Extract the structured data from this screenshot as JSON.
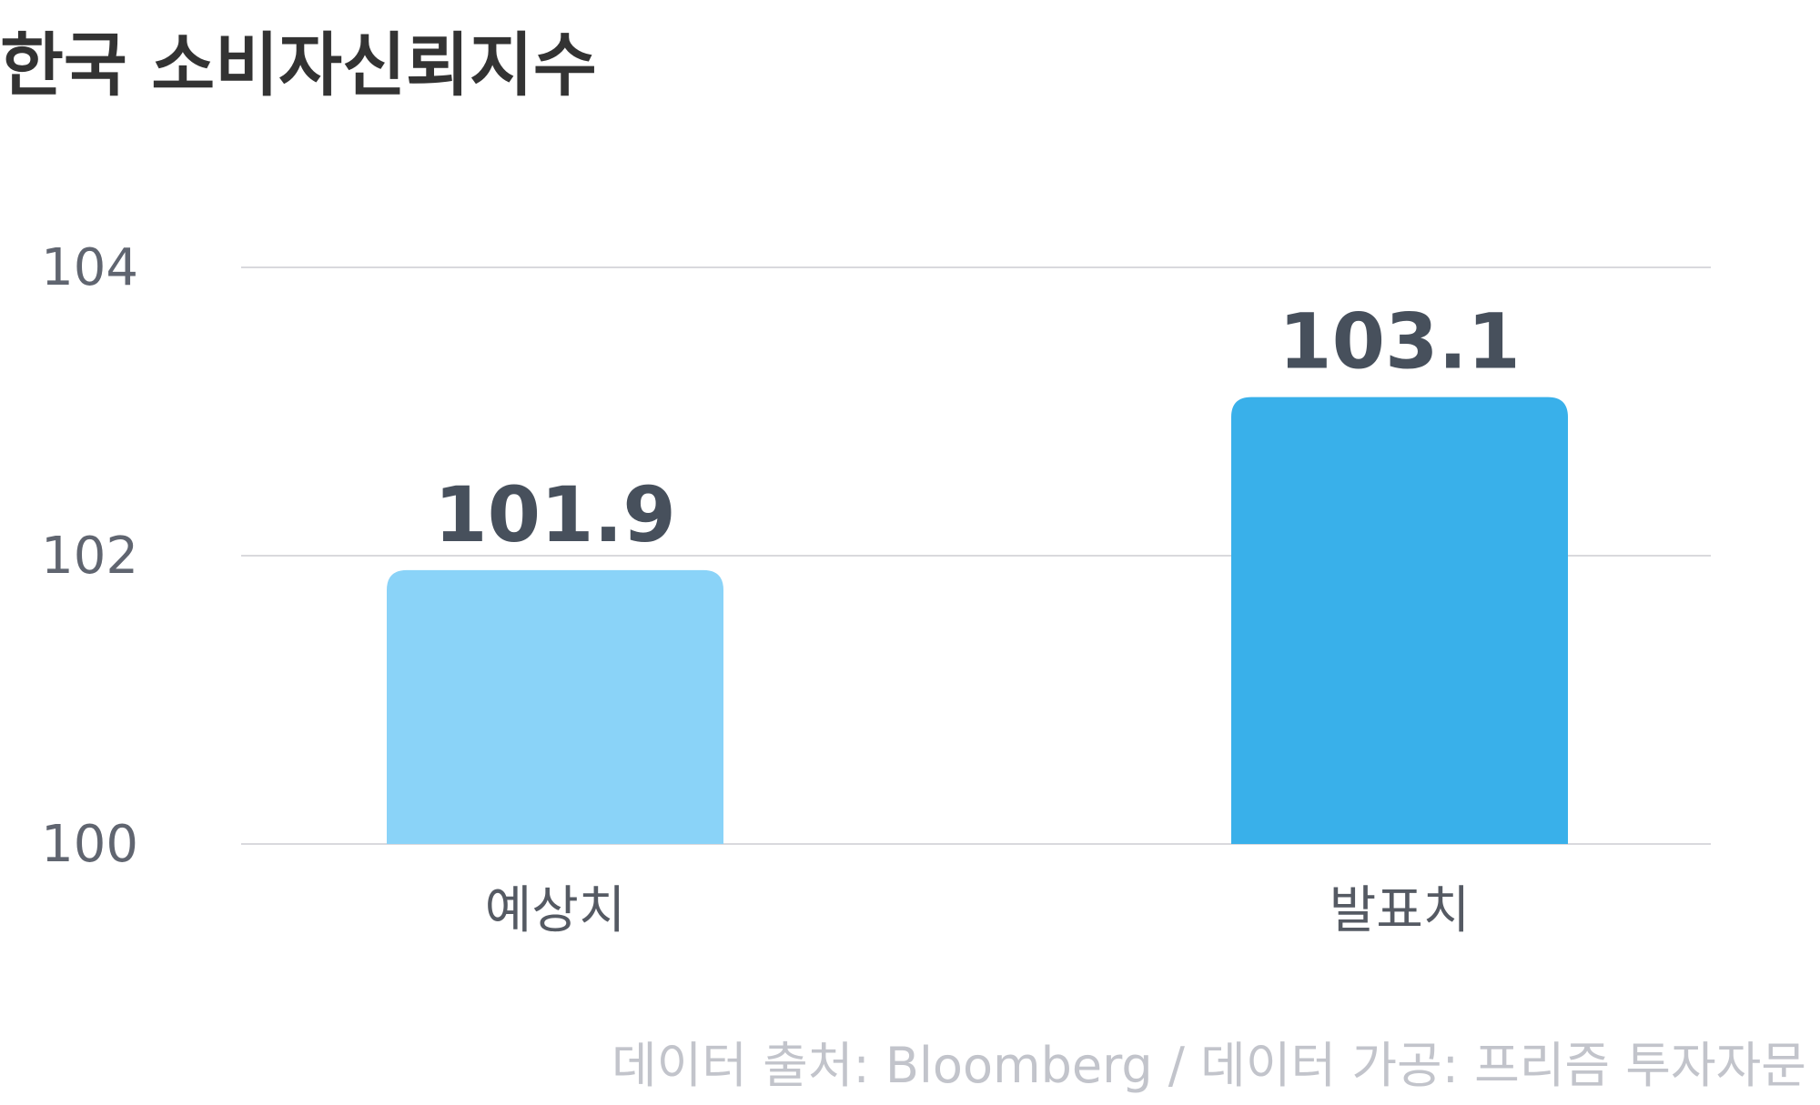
{
  "chart_data": {
    "type": "bar",
    "title": "한국 소비자신뢰지수",
    "categories": [
      "예상치",
      "발표치"
    ],
    "values": [
      101.9,
      103.1
    ],
    "value_labels": [
      "101.9",
      "103.1"
    ],
    "bar_colors": [
      "#8AD3F8",
      "#39B0EA"
    ],
    "yticks": [
      100,
      102,
      104
    ],
    "ylim": [
      100,
      104
    ],
    "grid": true,
    "xlabel": "",
    "ylabel": "",
    "source": "데이터 출처: Bloomberg / 데이터 가공: 프리즘 투자자문"
  },
  "colors": {
    "title": "#333333",
    "tick_label": "#606570",
    "category_label": "#555a63",
    "value_label": "#47505c",
    "grid": "#d9d9dd",
    "source": "#c2c4cb"
  }
}
